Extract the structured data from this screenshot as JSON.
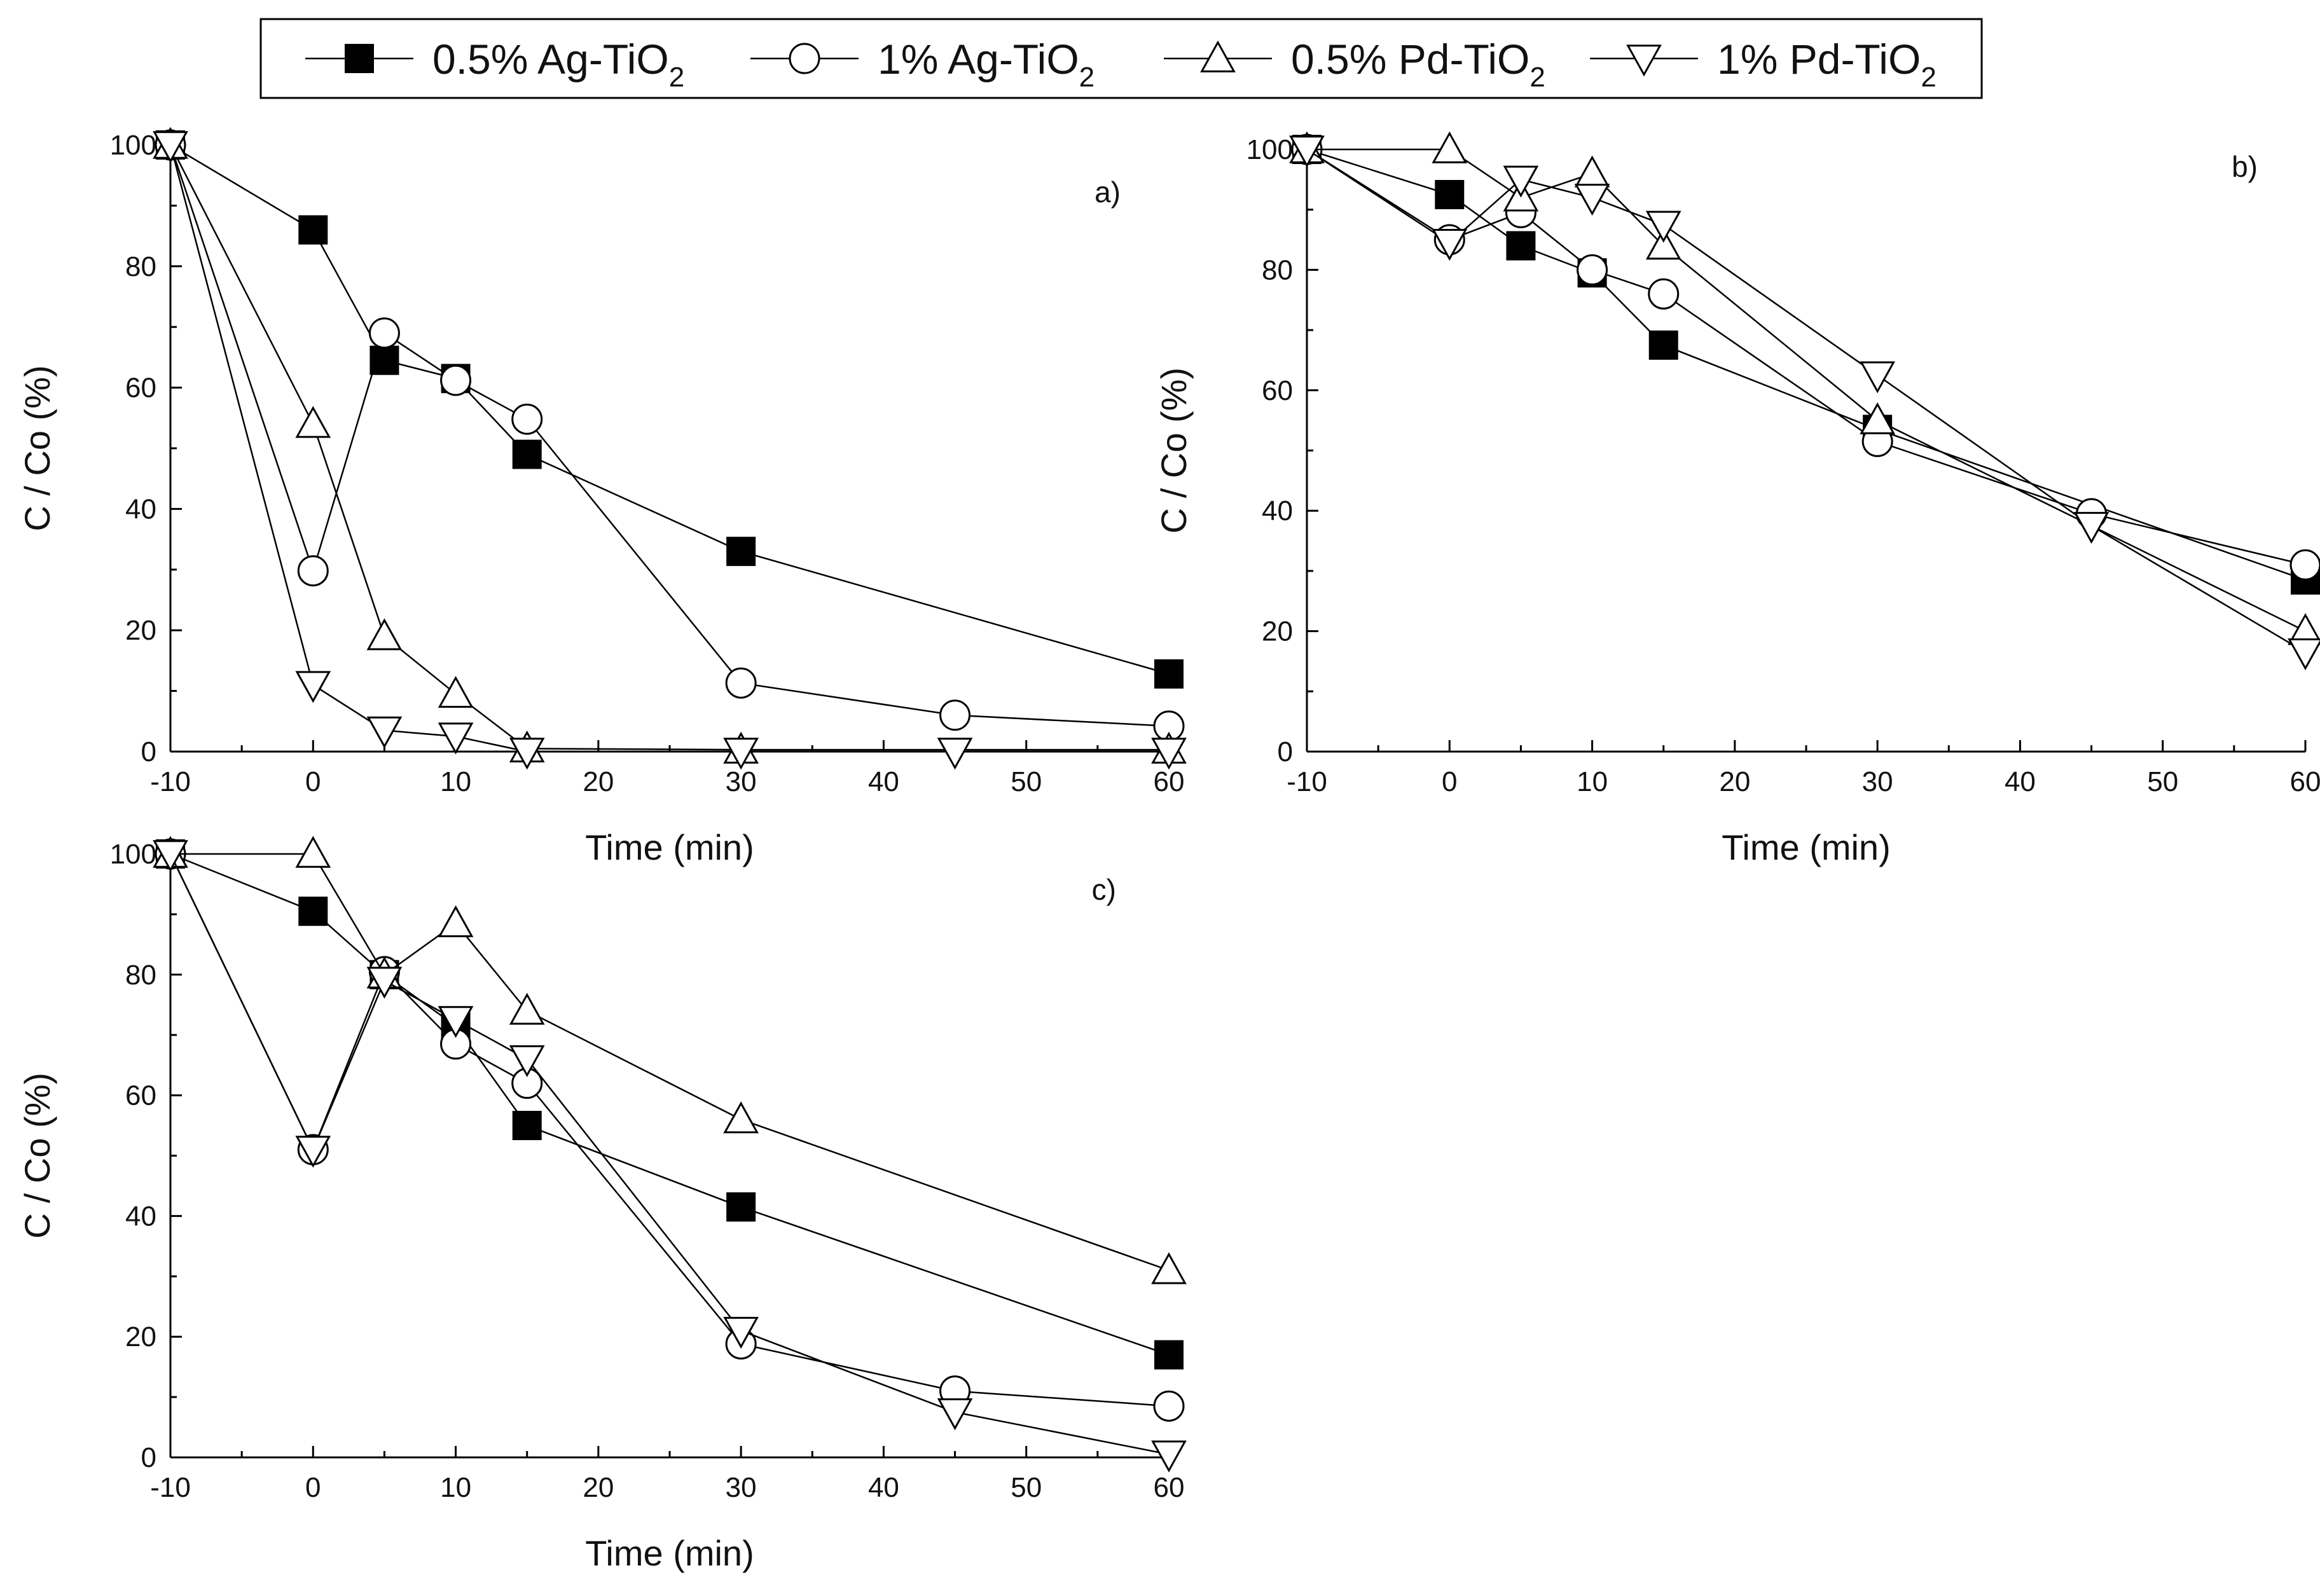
{
  "chart_data": {
    "type": "line",
    "legend": {
      "placement": "top",
      "entries": [
        {
          "key": "ag05",
          "prefix": "0.5% Ag-TiO",
          "sub": "2"
        },
        {
          "key": "ag1",
          "prefix": "1% Ag-TiO",
          "sub": "2"
        },
        {
          "key": "pd05",
          "prefix": "0.5% Pd-TiO",
          "sub": "2"
        },
        {
          "key": "pd1",
          "prefix": "1% Pd-TiO",
          "sub": "2"
        }
      ]
    },
    "panels": [
      {
        "id": "a",
        "label": "a)",
        "xlabel": "Time (min)",
        "ylabel": "C / Co (%)",
        "xlim": [
          -10,
          60
        ],
        "ylim": [
          0,
          100
        ],
        "xticks": [
          -10,
          0,
          10,
          20,
          30,
          40,
          50,
          60
        ],
        "yticks": [
          0,
          20,
          40,
          60,
          80,
          100
        ],
        "series": [
          {
            "key": "ag05",
            "x": [
              -10,
              0,
              5,
              10,
              15,
              30,
              60
            ],
            "y": [
              100,
              86,
              64.5,
              61.5,
              49,
              33,
              12.8
            ]
          },
          {
            "key": "ag1",
            "x": [
              -10,
              0,
              5,
              10,
              15,
              30,
              45,
              60
            ],
            "y": [
              100,
              29.8,
              69,
              61.2,
              54.8,
              11.3,
              6,
              4.2
            ]
          },
          {
            "key": "pd05",
            "x": [
              -10,
              0,
              5,
              10,
              15,
              30,
              60
            ],
            "y": [
              100,
              54,
              19,
              9.5,
              0.5,
              0.3,
              0.3
            ]
          },
          {
            "key": "pd1",
            "x": [
              -10,
              0,
              5,
              10,
              15,
              30,
              45,
              60
            ],
            "y": [
              100,
              11,
              3.5,
              2.5,
              0,
              0,
              0,
              0
            ]
          }
        ]
      },
      {
        "id": "b",
        "label": "b)",
        "xlabel": "Time (min)",
        "ylabel": "C / Co (%)",
        "xlim": [
          -10,
          60
        ],
        "ylim": [
          0,
          100
        ],
        "xticks": [
          -10,
          0,
          10,
          20,
          30,
          40,
          50,
          60
        ],
        "yticks": [
          0,
          20,
          40,
          60,
          80,
          100
        ],
        "series": [
          {
            "key": "ag05",
            "x": [
              -10,
              0,
              5,
              10,
              15,
              30,
              60
            ],
            "y": [
              100,
              92.5,
              84,
              79.5,
              67.5,
              53.5,
              28.5
            ]
          },
          {
            "key": "ag1",
            "x": [
              -10,
              0,
              5,
              10,
              15,
              30,
              45,
              60
            ],
            "y": [
              100,
              85,
              89.5,
              80,
              76,
              51.5,
              39.5,
              31
            ]
          },
          {
            "key": "pd05",
            "x": [
              -10,
              0,
              5,
              10,
              15,
              30,
              60
            ],
            "y": [
              100,
              100,
              92,
              96,
              84,
              55,
              20
            ]
          },
          {
            "key": "pd1",
            "x": [
              -10,
              0,
              5,
              10,
              15,
              30,
              45,
              60
            ],
            "y": [
              100,
              84.5,
              95,
              92,
              87.5,
              62.5,
              37.5,
              16.5
            ]
          }
        ]
      },
      {
        "id": "c",
        "label": "c)",
        "xlabel": "Time (min)",
        "ylabel": "C / Co (%)",
        "xlim": [
          -10,
          60
        ],
        "ylim": [
          0,
          100
        ],
        "xticks": [
          -10,
          0,
          10,
          20,
          30,
          40,
          50,
          60
        ],
        "yticks": [
          0,
          20,
          40,
          60,
          80,
          100
        ],
        "series": [
          {
            "key": "ag05",
            "x": [
              -10,
              0,
              5,
              10,
              15,
              30,
              60
            ],
            "y": [
              100,
              90.5,
              80,
              71.5,
              55,
              41.5,
              17
            ]
          },
          {
            "key": "ag1",
            "x": [
              -10,
              0,
              5,
              10,
              15,
              30,
              45,
              60
            ],
            "y": [
              100,
              51,
              80.5,
              68.5,
              62,
              18.8,
              11,
              8.5
            ]
          },
          {
            "key": "pd05",
            "x": [
              -10,
              0,
              5,
              10,
              15,
              30,
              60
            ],
            "y": [
              100,
              100,
              80,
              88.5,
              74,
              56,
              31
            ]
          },
          {
            "key": "pd1",
            "x": [
              -10,
              0,
              5,
              10,
              15,
              30,
              45,
              60
            ],
            "y": [
              100,
              51,
              79,
              72.5,
              66,
              21,
              7.5,
              0.5
            ]
          }
        ]
      }
    ]
  }
}
